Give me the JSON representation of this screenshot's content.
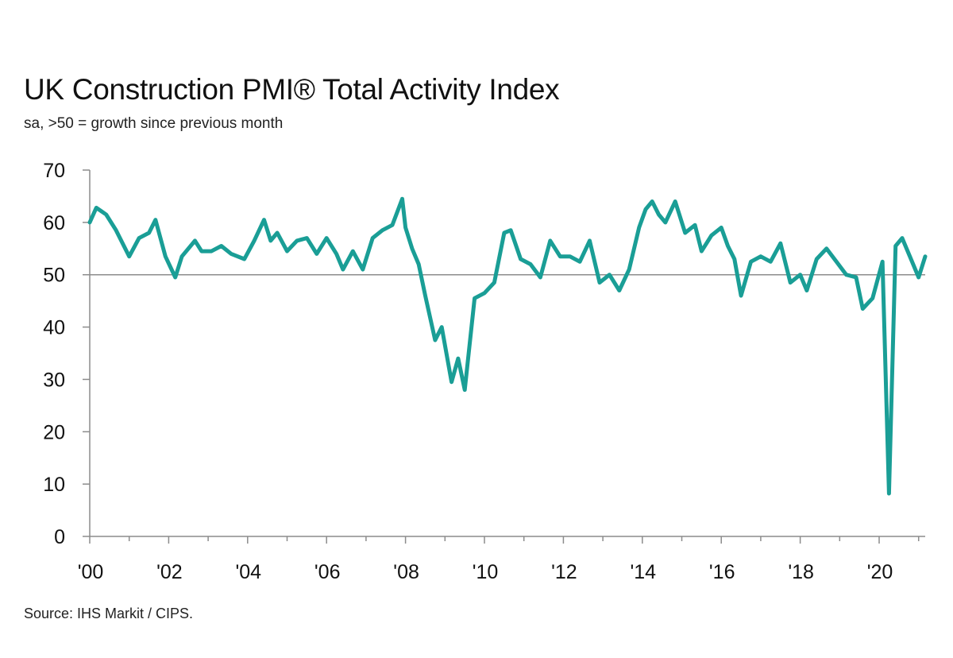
{
  "title": "UK Construction PMI® Total Activity Index",
  "subtitle": "sa, >50 = growth since previous month",
  "source": "Source: IHS Markit / CIPS.",
  "colors": {
    "series": "#1a9e96",
    "axis": "#8c8c8c",
    "reference_line": "#8c8c8c"
  },
  "chart_data": {
    "type": "line",
    "title": "UK Construction PMI® Total Activity Index",
    "subtitle": "sa, >50 = growth since previous month",
    "xlabel": "",
    "ylabel": "",
    "xlim": [
      "2000-01",
      "2021-03"
    ],
    "ylim": [
      0,
      70
    ],
    "y_ticks": [
      "0",
      "10",
      "20",
      "30",
      "40",
      "50",
      "60",
      "70"
    ],
    "x_ticks": [
      {
        "label": "'00",
        "date": "2000-01"
      },
      {
        "label": "'02",
        "date": "2002-01"
      },
      {
        "label": "'04",
        "date": "2004-01"
      },
      {
        "label": "'06",
        "date": "2006-01"
      },
      {
        "label": "'08",
        "date": "2008-01"
      },
      {
        "label": "'10",
        "date": "2010-01"
      },
      {
        "label": "'12",
        "date": "2012-01"
      },
      {
        "label": "'14",
        "date": "2014-01"
      },
      {
        "label": "'16",
        "date": "2016-01"
      },
      {
        "label": "'18",
        "date": "2018-01"
      },
      {
        "label": "'20",
        "date": "2020-01"
      }
    ],
    "reference_line": 50,
    "grid": false,
    "legend": "none",
    "series": [
      {
        "points": [
          [
            "2000-01",
            60.0
          ],
          [
            "2000-03",
            62.8
          ],
          [
            "2000-06",
            61.5
          ],
          [
            "2000-09",
            58.5
          ],
          [
            "2001-01",
            53.5
          ],
          [
            "2001-04",
            57.0
          ],
          [
            "2001-07",
            58.0
          ],
          [
            "2001-09",
            60.5
          ],
          [
            "2001-12",
            53.5
          ],
          [
            "2002-03",
            49.5
          ],
          [
            "2002-05",
            53.5
          ],
          [
            "2002-09",
            56.5
          ],
          [
            "2002-11",
            54.5
          ],
          [
            "2003-02",
            54.5
          ],
          [
            "2003-05",
            55.5
          ],
          [
            "2003-08",
            54.0
          ],
          [
            "2003-12",
            53.0
          ],
          [
            "2004-03",
            56.5
          ],
          [
            "2004-06",
            60.5
          ],
          [
            "2004-08",
            56.5
          ],
          [
            "2004-10",
            58.0
          ],
          [
            "2005-01",
            54.5
          ],
          [
            "2005-04",
            56.5
          ],
          [
            "2005-07",
            57.0
          ],
          [
            "2005-10",
            54.0
          ],
          [
            "2006-01",
            57.0
          ],
          [
            "2006-04",
            54.0
          ],
          [
            "2006-06",
            51.0
          ],
          [
            "2006-09",
            54.5
          ],
          [
            "2006-12",
            51.0
          ],
          [
            "2007-03",
            57.0
          ],
          [
            "2007-06",
            58.5
          ],
          [
            "2007-09",
            59.5
          ],
          [
            "2007-12",
            64.5
          ],
          [
            "2008-01",
            59.0
          ],
          [
            "2008-03",
            55.0
          ],
          [
            "2008-05",
            52.0
          ],
          [
            "2008-07",
            46.0
          ],
          [
            "2008-10",
            37.5
          ],
          [
            "2008-12",
            40.0
          ],
          [
            "2009-03",
            29.5
          ],
          [
            "2009-05",
            34.0
          ],
          [
            "2009-07",
            28.0
          ],
          [
            "2009-10",
            45.5
          ],
          [
            "2010-01",
            46.5
          ],
          [
            "2010-04",
            48.5
          ],
          [
            "2010-07",
            58.0
          ],
          [
            "2010-09",
            58.5
          ],
          [
            "2010-12",
            53.0
          ],
          [
            "2011-03",
            52.0
          ],
          [
            "2011-06",
            49.5
          ],
          [
            "2011-09",
            56.5
          ],
          [
            "2011-12",
            53.5
          ],
          [
            "2012-03",
            53.5
          ],
          [
            "2012-06",
            52.5
          ],
          [
            "2012-09",
            56.5
          ],
          [
            "2012-12",
            48.5
          ],
          [
            "2013-03",
            50.0
          ],
          [
            "2013-06",
            47.0
          ],
          [
            "2013-09",
            51.0
          ],
          [
            "2013-12",
            59.0
          ],
          [
            "2014-02",
            62.5
          ],
          [
            "2014-04",
            64.0
          ],
          [
            "2014-06",
            61.5
          ],
          [
            "2014-08",
            60.0
          ],
          [
            "2014-11",
            64.0
          ],
          [
            "2015-02",
            58.0
          ],
          [
            "2015-05",
            59.5
          ],
          [
            "2015-07",
            54.5
          ],
          [
            "2015-10",
            57.5
          ],
          [
            "2016-01",
            59.0
          ],
          [
            "2016-03",
            55.5
          ],
          [
            "2016-05",
            53.0
          ],
          [
            "2016-07",
            46.0
          ],
          [
            "2016-10",
            52.5
          ],
          [
            "2017-01",
            53.5
          ],
          [
            "2017-04",
            52.5
          ],
          [
            "2017-07",
            56.0
          ],
          [
            "2017-10",
            48.5
          ],
          [
            "2018-01",
            50.0
          ],
          [
            "2018-03",
            47.0
          ],
          [
            "2018-06",
            53.0
          ],
          [
            "2018-09",
            55.0
          ],
          [
            "2018-12",
            52.5
          ],
          [
            "2019-03",
            50.0
          ],
          [
            "2019-06",
            49.5
          ],
          [
            "2019-08",
            43.5
          ],
          [
            "2019-11",
            45.5
          ],
          [
            "2020-02",
            52.5
          ],
          [
            "2020-04",
            8.2
          ],
          [
            "2020-06",
            55.5
          ],
          [
            "2020-08",
            57.0
          ],
          [
            "2020-10",
            54.0
          ],
          [
            "2021-01",
            49.5
          ],
          [
            "2021-03",
            53.5
          ]
        ]
      }
    ]
  }
}
